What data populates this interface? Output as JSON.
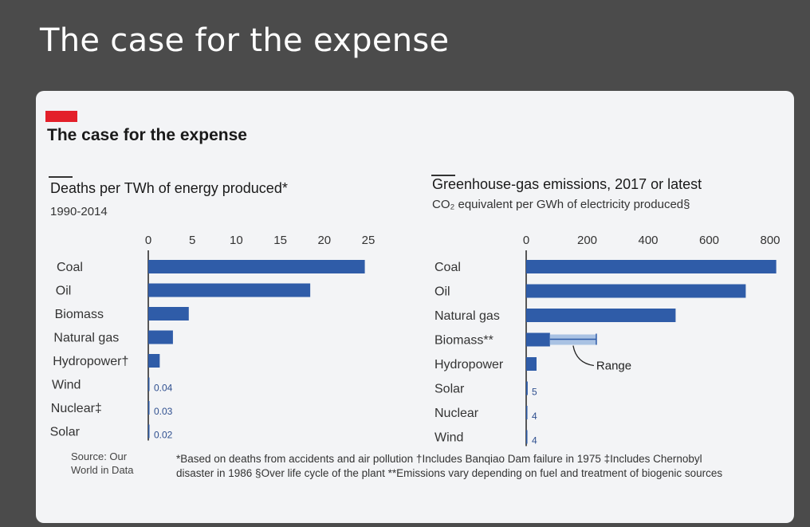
{
  "header": {
    "title": "The case for the expense"
  },
  "card": {
    "title": "The case for the expense",
    "accent": "#e3202a",
    "bar_color": "#2f5ca8",
    "range_color": "#a9c2e3"
  },
  "chart_data": [
    {
      "type": "bar",
      "orientation": "horizontal",
      "title": "Deaths per TWh of energy produced*",
      "subtitle": "1990-2014",
      "categories": [
        "Coal",
        "Oil",
        "Biomass",
        "Natural gas",
        "Hydropower†",
        "Wind",
        "Nuclear‡",
        "Solar"
      ],
      "values": [
        24.6,
        18.4,
        4.6,
        2.8,
        1.3,
        0.04,
        0.03,
        0.02
      ],
      "data_labels": [
        "",
        "",
        "",
        "",
        "",
        "0.04",
        "0.03",
        "0.02"
      ],
      "xlim": [
        0,
        25
      ],
      "ticks": [
        0,
        5,
        10,
        15,
        20,
        25
      ],
      "tick_labels": [
        "0",
        "5",
        "10",
        "15",
        "20",
        "25"
      ],
      "axis_position": "top",
      "grid": false
    },
    {
      "type": "bar",
      "orientation": "horizontal",
      "title": "Greenhouse-gas emissions, 2017 or latest",
      "subtitle": "CO₂ equivalent per GWh of electricity produced§",
      "categories": [
        "Coal",
        "Oil",
        "Natural gas",
        "Biomass**",
        "Hydropower",
        "Solar",
        "Nuclear",
        "Wind"
      ],
      "values": [
        820,
        720,
        490,
        78,
        34,
        5,
        4,
        4
      ],
      "data_labels": [
        "",
        "",
        "",
        "",
        "",
        "5",
        "4",
        "4"
      ],
      "range": {
        "category": "Biomass**",
        "low": 78,
        "high": 230,
        "label": "Range"
      },
      "xlim": [
        0,
        800
      ],
      "ticks": [
        0,
        200,
        400,
        600,
        800
      ],
      "tick_labels": [
        "0",
        "200",
        "400",
        "600",
        "800"
      ],
      "axis_position": "top",
      "grid": false
    }
  ],
  "source": {
    "line1": "Source: Our",
    "line2": "World in Data"
  },
  "footnotes": {
    "line1": "*Based on deaths from accidents and air pollution  †Includes Banqiao Dam failure in 1975  ‡Includes Chernobyl",
    "line2": "disaster in 1986  §Over life cycle of the plant  **Emissions vary depending on fuel and treatment of biogenic sources"
  }
}
